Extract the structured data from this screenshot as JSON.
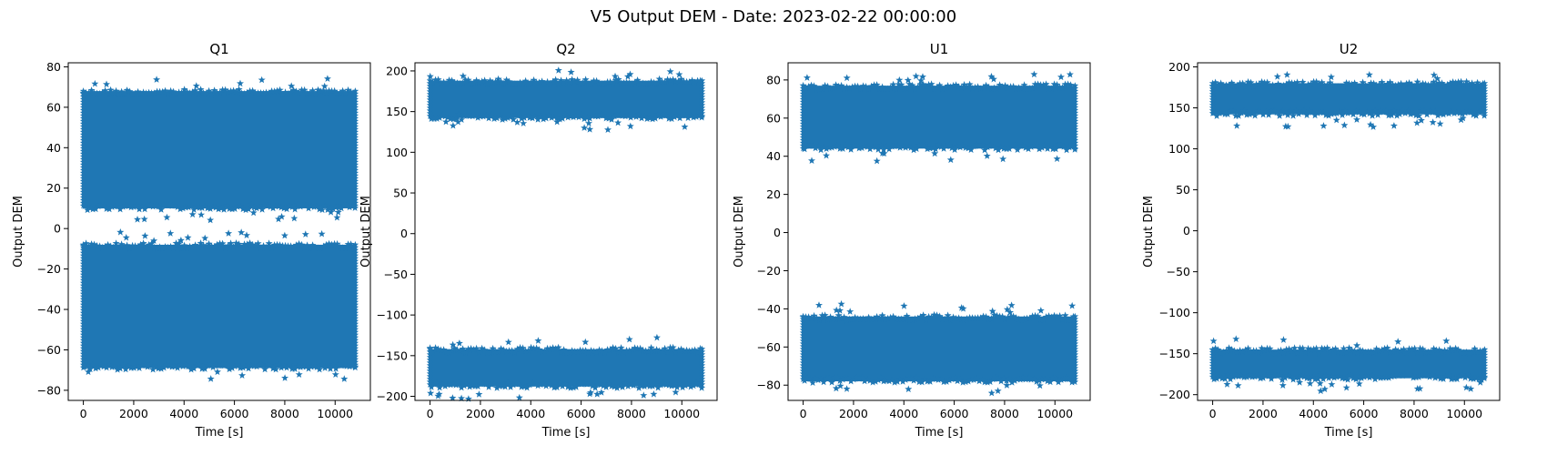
{
  "figure": {
    "title": "V5 Output DEM - Date: 2023-02-22 00:00:00"
  },
  "chart_data": [
    {
      "type": "scatter",
      "title": "Q1",
      "xlabel": "Time [s]",
      "ylabel": "Output DEM",
      "xlim": [
        -600,
        11400
      ],
      "ylim": [
        -85,
        82
      ],
      "xticks": [
        0,
        2000,
        4000,
        6000,
        8000,
        10000
      ],
      "yticks": [
        -80,
        -60,
        -40,
        -20,
        0,
        20,
        40,
        60,
        80
      ],
      "marker": "star",
      "color": "#1f77b4",
      "grid": false,
      "legend": "none",
      "x_range": [
        0,
        10800
      ],
      "bands": [
        {
          "y_low": 10,
          "y_high": 68
        },
        {
          "y_low": -69,
          "y_high": -8
        }
      ]
    },
    {
      "type": "scatter",
      "title": "Q2",
      "xlabel": "Time [s]",
      "ylabel": "Output DEM",
      "xlim": [
        -600,
        11400
      ],
      "ylim": [
        -205,
        210
      ],
      "xticks": [
        0,
        2000,
        4000,
        6000,
        8000,
        10000
      ],
      "yticks": [
        -200,
        -150,
        -100,
        -50,
        0,
        50,
        100,
        150,
        200
      ],
      "marker": "star",
      "color": "#1f77b4",
      "grid": false,
      "legend": "none",
      "x_range": [
        0,
        10800
      ],
      "bands": [
        {
          "y_low": 142,
          "y_high": 188
        },
        {
          "y_low": -188,
          "y_high": -142
        }
      ]
    },
    {
      "type": "scatter",
      "title": "U1",
      "xlabel": "Time [s]",
      "ylabel": "Output DEM",
      "xlim": [
        -600,
        11400
      ],
      "ylim": [
        -88,
        89
      ],
      "xticks": [
        0,
        2000,
        4000,
        6000,
        8000,
        10000
      ],
      "yticks": [
        -80,
        -60,
        -40,
        -20,
        0,
        20,
        40,
        60,
        80
      ],
      "marker": "star",
      "color": "#1f77b4",
      "grid": false,
      "legend": "none",
      "x_range": [
        0,
        10800
      ],
      "bands": [
        {
          "y_low": 44,
          "y_high": 77
        },
        {
          "y_low": -78,
          "y_high": -44
        }
      ]
    },
    {
      "type": "scatter",
      "title": "U2",
      "xlabel": "Time [s]",
      "ylabel": "Output DEM",
      "xlim": [
        -600,
        11400
      ],
      "ylim": [
        -207,
        205
      ],
      "xticks": [
        0,
        2000,
        4000,
        6000,
        8000,
        10000
      ],
      "yticks": [
        -200,
        -150,
        -100,
        -50,
        0,
        50,
        100,
        150,
        200
      ],
      "marker": "star",
      "color": "#1f77b4",
      "grid": false,
      "legend": "none",
      "x_range": [
        0,
        10800
      ],
      "bands": [
        {
          "y_low": 142,
          "y_high": 180
        },
        {
          "y_low": -180,
          "y_high": -145
        }
      ]
    }
  ]
}
